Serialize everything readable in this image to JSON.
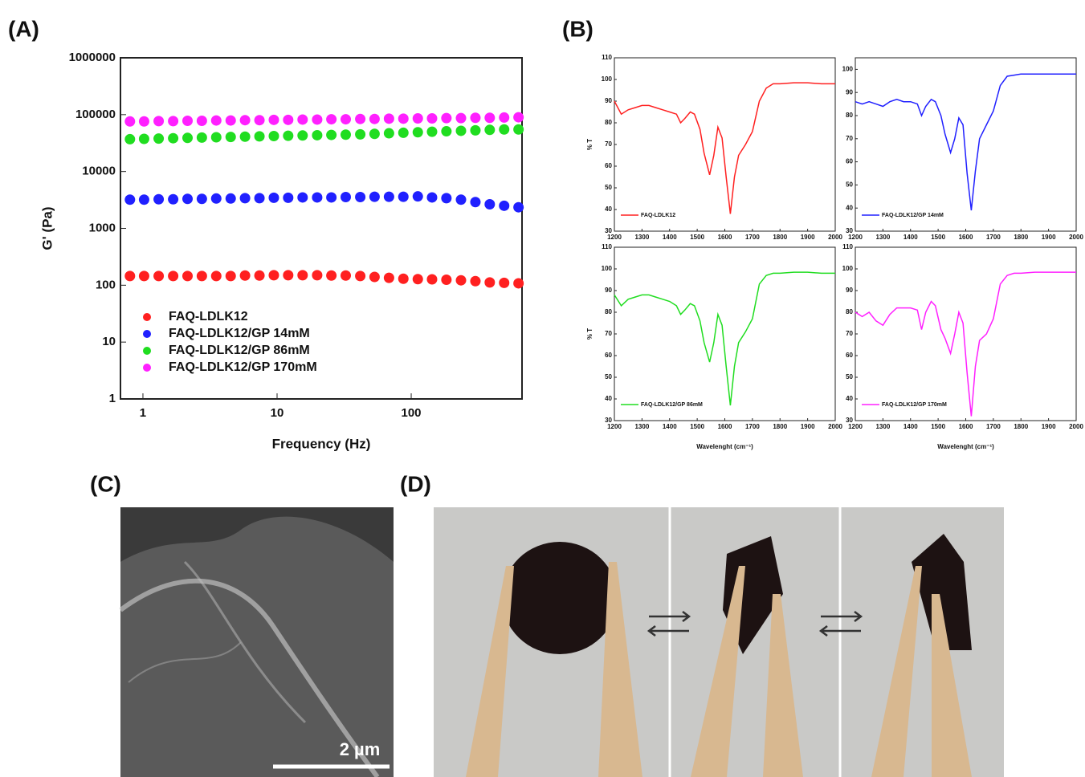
{
  "chart_data": [
    {
      "type": "scatter",
      "title": "(A)",
      "x_label": "Frequency (Hz)",
      "y_label": "G' (Pa)",
      "log_x": true,
      "log_y": true,
      "grid": false,
      "legend": "lower left",
      "xlim": [
        0.68,
        670
      ],
      "ylim": [
        1,
        1000000
      ],
      "xticks": [
        1,
        10,
        100
      ],
      "yticks": [
        1,
        10,
        100,
        1000,
        10000,
        100000,
        1000000
      ],
      "x": [
        0.8,
        1.02,
        1.31,
        1.68,
        2.15,
        2.75,
        3.52,
        4.51,
        5.77,
        7.39,
        9.46,
        12.1,
        15.5,
        19.9,
        25.4,
        32.5,
        41.7,
        53.3,
        68.3,
        87.4,
        112,
        143,
        183,
        235,
        301,
        385,
        493,
        631
      ],
      "series": [
        {
          "name": "FAQ-LDLK12",
          "color": "#ff2020",
          "values": [
            145,
            145,
            145,
            145,
            145,
            145,
            145,
            145,
            148,
            148,
            150,
            150,
            150,
            150,
            148,
            148,
            145,
            140,
            135,
            130,
            128,
            127,
            125,
            122,
            118,
            112,
            110,
            108
          ]
        },
        {
          "name": "FAQ-LDLK12/GP 14mM",
          "color": "#2020ff",
          "values": [
            3200,
            3200,
            3250,
            3250,
            3300,
            3300,
            3350,
            3350,
            3400,
            3400,
            3450,
            3450,
            3500,
            3500,
            3500,
            3550,
            3550,
            3600,
            3600,
            3600,
            3650,
            3500,
            3400,
            3200,
            2900,
            2650,
            2500,
            2350
          ]
        },
        {
          "name": "FAQ-LDLK12/GP 86mM",
          "color": "#20dd20",
          "values": [
            37000,
            37500,
            38000,
            38500,
            39000,
            39500,
            40000,
            40500,
            41000,
            41500,
            42000,
            42500,
            43000,
            43500,
            44000,
            44500,
            45000,
            46000,
            47000,
            48000,
            49000,
            50000,
            51000,
            52000,
            53000,
            54000,
            55000,
            55000
          ]
        },
        {
          "name": "FAQ-LDLK12/GP 170mM",
          "color": "#ff20ff",
          "values": [
            76000,
            76000,
            77000,
            77000,
            78000,
            78000,
            79000,
            79000,
            80000,
            80000,
            81000,
            81000,
            82000,
            82000,
            83000,
            83000,
            84000,
            84000,
            85000,
            85000,
            86000,
            86000,
            87000,
            87000,
            88000,
            88000,
            89000,
            90000
          ]
        }
      ]
    },
    {
      "type": "line",
      "title": "(B)",
      "y_label": "% T",
      "legend": "lower left",
      "xlim": [
        1200,
        2000
      ],
      "ylim": [
        30,
        110
      ],
      "xticks": [
        1200,
        1300,
        1400,
        1500,
        1600,
        1700,
        1800,
        1900,
        2000
      ],
      "yticks": [
        30,
        40,
        50,
        60,
        70,
        80,
        90,
        100,
        110
      ],
      "x": [
        1200,
        1225,
        1250,
        1275,
        1300,
        1325,
        1350,
        1375,
        1400,
        1425,
        1440,
        1455,
        1475,
        1490,
        1510,
        1525,
        1545,
        1560,
        1575,
        1590,
        1605,
        1620,
        1635,
        1650,
        1675,
        1700,
        1725,
        1750,
        1775,
        1800,
        1850,
        1900,
        1950,
        2000
      ],
      "series": [
        {
          "name": "FAQ-LDLK12",
          "color": "#ff2020",
          "values": [
            90,
            84,
            86,
            87,
            88,
            88,
            87,
            86,
            85,
            84,
            80,
            82,
            85,
            84,
            77,
            66,
            56,
            65,
            78,
            73,
            55,
            38,
            55,
            65,
            70,
            76,
            90,
            96,
            98,
            98,
            98.5,
            98.5,
            98,
            98
          ]
        }
      ]
    },
    {
      "type": "line",
      "legend": "lower left",
      "xlim": [
        1200,
        2000
      ],
      "ylim": [
        30,
        105
      ],
      "xticks": [
        1200,
        1300,
        1400,
        1500,
        1600,
        1700,
        1800,
        1900,
        2000
      ],
      "yticks": [
        30,
        40,
        50,
        60,
        70,
        80,
        90,
        100
      ],
      "x": [
        1200,
        1225,
        1250,
        1275,
        1300,
        1325,
        1350,
        1375,
        1400,
        1425,
        1440,
        1455,
        1475,
        1490,
        1510,
        1525,
        1545,
        1560,
        1575,
        1590,
        1605,
        1620,
        1635,
        1650,
        1675,
        1700,
        1725,
        1750,
        1775,
        1800,
        1850,
        1900,
        1950,
        2000
      ],
      "series": [
        {
          "name": "FAQ-LDLK12/GP 14mM",
          "color": "#2020ff",
          "values": [
            86,
            85,
            86,
            85,
            84,
            86,
            87,
            86,
            86,
            85,
            80,
            84,
            87,
            86,
            80,
            72,
            64,
            70,
            79,
            76,
            55,
            39,
            56,
            70,
            76,
            82,
            93,
            97,
            97.5,
            98,
            98,
            98,
            98,
            98
          ]
        }
      ]
    },
    {
      "type": "line",
      "y_label": "% T",
      "x_label": "Wavelenght (cm⁻¹)",
      "legend": "lower left",
      "xlim": [
        1200,
        2000
      ],
      "ylim": [
        30,
        110
      ],
      "xticks": [
        1200,
        1300,
        1400,
        1500,
        1600,
        1700,
        1800,
        1900,
        2000
      ],
      "yticks": [
        30,
        40,
        50,
        60,
        70,
        80,
        90,
        100,
        110
      ],
      "x": [
        1200,
        1225,
        1250,
        1275,
        1300,
        1325,
        1350,
        1375,
        1400,
        1425,
        1440,
        1455,
        1475,
        1490,
        1510,
        1525,
        1545,
        1560,
        1575,
        1590,
        1605,
        1620,
        1635,
        1650,
        1675,
        1700,
        1725,
        1750,
        1775,
        1800,
        1850,
        1900,
        1950,
        2000
      ],
      "series": [
        {
          "name": "FAQ-LDLK12/GP 86mM",
          "color": "#20dd20",
          "values": [
            88,
            83,
            86,
            87,
            88,
            88,
            87,
            86,
            85,
            83,
            79,
            81,
            84,
            83,
            76,
            66,
            57,
            66,
            79,
            74,
            55,
            37,
            55,
            66,
            71,
            77,
            93,
            97,
            98,
            98,
            98.5,
            98.5,
            98,
            98
          ]
        }
      ]
    },
    {
      "type": "line",
      "x_label": "Wavelenght (cm⁻¹)",
      "legend": "lower left",
      "xlim": [
        1200,
        2000
      ],
      "ylim": [
        30,
        110
      ],
      "xticks": [
        1200,
        1300,
        1400,
        1500,
        1600,
        1700,
        1800,
        1900,
        2000
      ],
      "yticks": [
        30,
        40,
        50,
        60,
        70,
        80,
        90,
        100,
        110
      ],
      "x": [
        1200,
        1225,
        1250,
        1275,
        1300,
        1325,
        1350,
        1375,
        1400,
        1425,
        1440,
        1455,
        1475,
        1490,
        1510,
        1525,
        1545,
        1560,
        1575,
        1590,
        1605,
        1620,
        1635,
        1650,
        1675,
        1700,
        1725,
        1750,
        1775,
        1800,
        1850,
        1900,
        1950,
        2000
      ],
      "series": [
        {
          "name": "FAQ-LDLK12/GP 170mM",
          "color": "#ff20ff",
          "values": [
            80,
            78,
            80,
            76,
            74,
            79,
            82,
            82,
            82,
            81,
            72,
            80,
            85,
            83,
            72,
            68,
            61,
            70,
            80,
            75,
            52,
            32,
            55,
            67,
            70,
            77,
            93,
            97,
            98,
            98,
            98.5,
            98.5,
            98.5,
            98.5
          ]
        }
      ]
    }
  ],
  "images": [
    {
      "label": "(C)",
      "scale_bar": "2 µm"
    },
    {
      "label": "(D)"
    }
  ]
}
